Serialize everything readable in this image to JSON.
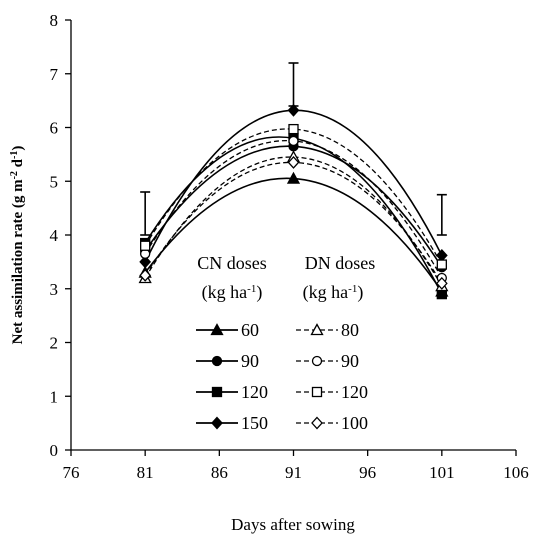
{
  "chart_data": {
    "type": "line",
    "title": "",
    "xlabel": "Days after sowing",
    "ylabel_parts": {
      "main": "Net assimilation rate (g m",
      "sup1": "-2",
      "mid": " d",
      "sup2": "-1",
      "end": ")"
    },
    "xlim": [
      76,
      106
    ],
    "ylim": [
      0,
      8
    ],
    "x_ticks": [
      "76",
      "81",
      "86",
      "91",
      "96",
      "101",
      "106"
    ],
    "y_ticks": [
      "0",
      "1",
      "2",
      "3",
      "4",
      "5",
      "6",
      "7",
      "8"
    ],
    "x": [
      81,
      91,
      101
    ],
    "error_bars": [
      {
        "x": 81,
        "low": 4.0,
        "high": 4.8
      },
      {
        "x": 91,
        "low": 6.4,
        "high": 7.2
      },
      {
        "x": 101,
        "low": 4.0,
        "high": 4.75
      }
    ],
    "legend_headers": {
      "cn_line1": "CN doses",
      "dn_line1": "DN doses",
      "unit_prefix": "(kg ha",
      "unit_sup": "-1",
      "unit_suffix": ")"
    },
    "series": [
      {
        "name": "60",
        "group": "CN",
        "marker": "triangle",
        "filled": true,
        "dashed": false,
        "values": [
          3.3,
          5.05,
          2.95
        ]
      },
      {
        "name": "90",
        "group": "CN",
        "marker": "circle",
        "filled": true,
        "dashed": false,
        "values": [
          3.7,
          5.65,
          3.4
        ]
      },
      {
        "name": "120",
        "group": "CN",
        "marker": "square",
        "filled": true,
        "dashed": false,
        "values": [
          3.85,
          5.8,
          2.9
        ]
      },
      {
        "name": "150",
        "group": "CN",
        "marker": "diamond",
        "filled": true,
        "dashed": false,
        "values": [
          3.5,
          6.32,
          3.62
        ]
      },
      {
        "name": "80",
        "group": "DN",
        "marker": "triangle",
        "filled": false,
        "dashed": true,
        "values": [
          3.2,
          5.45,
          3.05
        ]
      },
      {
        "name": "90",
        "group": "DN",
        "marker": "circle",
        "filled": false,
        "dashed": true,
        "values": [
          3.65,
          5.75,
          3.2
        ]
      },
      {
        "name": "120",
        "group": "DN",
        "marker": "square",
        "filled": false,
        "dashed": true,
        "values": [
          3.8,
          5.97,
          3.45
        ]
      },
      {
        "name": "100",
        "group": "DN",
        "marker": "diamond",
        "filled": false,
        "dashed": true,
        "values": [
          3.25,
          5.35,
          3.1
        ]
      }
    ]
  }
}
